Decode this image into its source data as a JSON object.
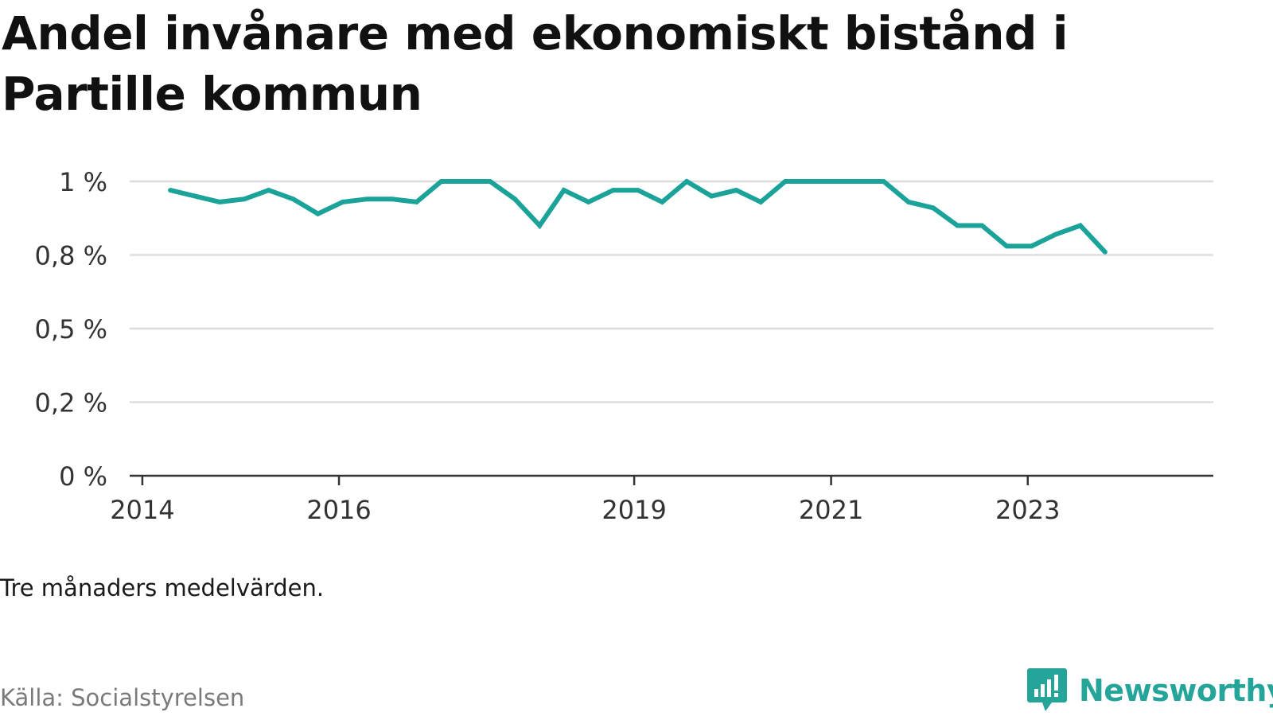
{
  "title": "Andel invånare med ekonomiskt bistånd i Partille kommun",
  "note": "Tre månaders medelvärden.",
  "source": "Källa: Socialstyrelsen",
  "brand": {
    "name": "Newsworthy",
    "icon": "newsworthy-logo-icon",
    "color": "#25a59a"
  },
  "colors": {
    "line": "#1ba39a",
    "grid": "#dddddd",
    "axis": "#333333"
  },
  "chart_data": {
    "type": "line",
    "title": "Andel invånare med ekonomiskt bistånd i Partille kommun",
    "xlabel": "",
    "ylabel": "",
    "grid": true,
    "ylim": [
      0,
      1.0
    ],
    "xlim": [
      "2013-11-15",
      "2024-11-20"
    ],
    "y_ticks": [
      {
        "value": 0,
        "label": "0 %"
      },
      {
        "value": 0.25,
        "label": "0,2 %"
      },
      {
        "value": 0.5,
        "label": "0,5 %"
      },
      {
        "value": 0.75,
        "label": "0,8 %"
      },
      {
        "value": 1.0,
        "label": "1 %"
      }
    ],
    "x_ticks": [
      {
        "date": "2014-01-01",
        "label": "2014"
      },
      {
        "date": "2016-01-01",
        "label": "2016"
      },
      {
        "date": "2019-01-01",
        "label": "2019"
      },
      {
        "date": "2021-01-01",
        "label": "2021"
      },
      {
        "date": "2023-01-01",
        "label": "2023"
      }
    ],
    "series": [
      {
        "x": [
          "2014-04",
          "2014-07",
          "2014-10",
          "2015-01",
          "2015-04",
          "2015-07",
          "2015-10",
          "2016-01",
          "2016-04",
          "2016-07",
          "2016-10",
          "2017-01",
          "2017-04",
          "2017-07",
          "2017-10",
          "2018-01",
          "2018-04",
          "2018-07",
          "2018-10",
          "2019-01",
          "2019-04",
          "2019-07",
          "2019-10",
          "2020-01",
          "2020-04",
          "2020-07",
          "2020-10",
          "2021-01",
          "2021-04",
          "2021-07",
          "2021-10",
          "2022-01",
          "2022-04",
          "2022-07",
          "2022-10",
          "2023-01",
          "2023-04",
          "2023-07",
          "2023-10"
        ],
        "values": [
          0.97,
          0.95,
          0.93,
          0.94,
          0.97,
          0.94,
          0.89,
          0.93,
          0.94,
          0.94,
          0.93,
          1.0,
          1.0,
          1.0,
          0.94,
          0.85,
          0.97,
          0.93,
          0.97,
          0.97,
          0.93,
          1.0,
          0.95,
          0.97,
          0.93,
          1.0,
          1.0,
          1.0,
          1.0,
          1.0,
          0.93,
          0.91,
          0.85,
          0.85,
          0.78,
          0.78,
          0.82,
          0.85,
          0.76
        ]
      }
    ]
  }
}
